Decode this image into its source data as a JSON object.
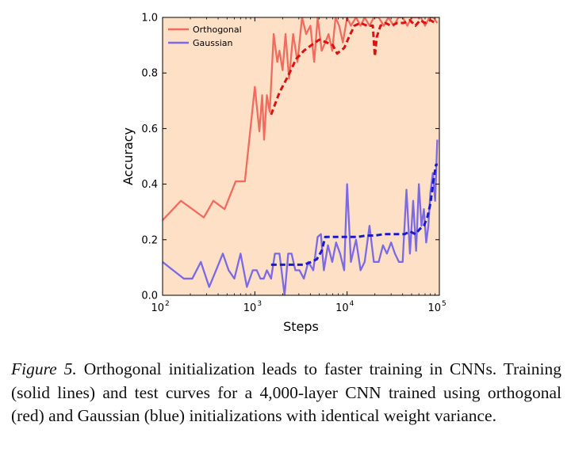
{
  "figure": {
    "caption_label": "Figure 5.",
    "caption_title": " Orthogonal initialization leads to faster training in CNNs.",
    "caption_body": " Training (solid lines) and test curves for a 4,000-layer CNN trained using orthogonal (red) and Gaussian (blue) initializations with identical weight variance."
  },
  "colors": {
    "plot_background": "#fde0c6",
    "orthogonal_train": "#f26b5e",
    "orthogonal_test": "#dd1111",
    "gaussian_train": "#7b6ae6",
    "gaussian_test": "#1a1acc"
  },
  "chart_data": {
    "type": "line",
    "title": "",
    "xlabel": "Steps",
    "ylabel": "Accuracy",
    "xscale": "log",
    "xlim": [
      100,
      100000
    ],
    "ylim": [
      0.0,
      1.0
    ],
    "xticks": [
      {
        "value": 100,
        "base": "10",
        "exp": "2"
      },
      {
        "value": 1000,
        "base": "10",
        "exp": "3"
      },
      {
        "value": 10000,
        "base": "10",
        "exp": "4"
      },
      {
        "value": 100000,
        "base": "10",
        "exp": "5"
      }
    ],
    "yticks": [
      {
        "value": 0.0,
        "label": "0.0"
      },
      {
        "value": 0.2,
        "label": "0.2"
      },
      {
        "value": 0.4,
        "label": "0.4"
      },
      {
        "value": 0.6,
        "label": "0.6"
      },
      {
        "value": 0.8,
        "label": "0.8"
      },
      {
        "value": 1.0,
        "label": "1.0"
      }
    ],
    "grid": false,
    "legend_position": "top-left",
    "series": [
      {
        "name": "Orthogonal",
        "role": "train",
        "style": "solid",
        "color": "#f26b5e",
        "in_legend": true,
        "x": [
          100,
          158,
          280,
          355,
          470,
          620,
          780,
          1000,
          1120,
          1200,
          1260,
          1350,
          1450,
          1600,
          1750,
          1850,
          2000,
          2150,
          2350,
          2600,
          2900,
          3250,
          3600,
          4000,
          4400,
          4800,
          5300,
          5800,
          6300,
          6900,
          7500,
          8200,
          9000,
          10000,
          11000,
          12500,
          14000,
          15500,
          17500,
          19500,
          22000,
          25000,
          28000,
          32000,
          36000,
          40000,
          45000,
          50000,
          56000,
          63000,
          70000,
          78000,
          86000,
          95000
        ],
        "y": [
          0.27,
          0.34,
          0.28,
          0.34,
          0.31,
          0.41,
          0.41,
          0.75,
          0.59,
          0.72,
          0.56,
          0.72,
          0.66,
          0.94,
          0.84,
          0.88,
          0.81,
          0.94,
          0.78,
          0.94,
          0.84,
          1.0,
          0.94,
          0.97,
          0.84,
          1.0,
          0.88,
          0.91,
          0.94,
          0.88,
          1.0,
          0.97,
          0.91,
          1.0,
          0.97,
          1.0,
          0.97,
          1.0,
          0.97,
          1.0,
          1.0,
          0.97,
          1.0,
          0.97,
          1.0,
          1.0,
          0.97,
          1.0,
          1.0,
          1.0,
          0.97,
          1.0,
          1.0,
          0.98
        ]
      },
      {
        "name": "Gaussian",
        "role": "train",
        "style": "solid",
        "color": "#7b6ae6",
        "in_legend": true,
        "x": [
          100,
          130,
          170,
          210,
          260,
          320,
          380,
          450,
          520,
          600,
          700,
          820,
          950,
          1050,
          1150,
          1250,
          1350,
          1500,
          1650,
          1850,
          2100,
          2300,
          2500,
          2750,
          3050,
          3400,
          3800,
          4300,
          4800,
          5200,
          5600,
          6200,
          6900,
          7600,
          8400,
          9300,
          10000,
          11000,
          12500,
          14000,
          15500,
          17500,
          19500,
          22000,
          24500,
          27000,
          30000,
          33000,
          36500,
          40000,
          44000,
          48000,
          52000,
          56000,
          60000,
          64000,
          68000,
          72000,
          76000,
          80000,
          85000,
          90000,
          95000
        ],
        "y": [
          0.12,
          0.09,
          0.06,
          0.06,
          0.12,
          0.03,
          0.09,
          0.15,
          0.09,
          0.06,
          0.15,
          0.03,
          0.09,
          0.09,
          0.06,
          0.06,
          0.09,
          0.06,
          0.15,
          0.15,
          0.0,
          0.15,
          0.15,
          0.09,
          0.09,
          0.06,
          0.12,
          0.09,
          0.21,
          0.22,
          0.09,
          0.18,
          0.12,
          0.19,
          0.15,
          0.09,
          0.4,
          0.12,
          0.2,
          0.09,
          0.12,
          0.25,
          0.12,
          0.12,
          0.18,
          0.15,
          0.19,
          0.15,
          0.12,
          0.12,
          0.38,
          0.15,
          0.34,
          0.16,
          0.4,
          0.25,
          0.31,
          0.19,
          0.25,
          0.37,
          0.44,
          0.34,
          0.56
        ]
      },
      {
        "name": "",
        "role": "test",
        "style": "dashed",
        "color": "#dd1111",
        "in_legend": false,
        "x": [
          1500,
          1850,
          2300,
          2800,
          3400,
          4100,
          5000,
          6000,
          7000,
          7800,
          8500,
          9300,
          10500,
          12000,
          14000,
          16500,
          19000,
          20000,
          21000,
          23000,
          26000,
          30000,
          35000,
          41000,
          48000,
          55000,
          62000,
          70000,
          80000,
          90000
        ],
        "y": [
          0.65,
          0.73,
          0.79,
          0.85,
          0.88,
          0.9,
          0.92,
          0.91,
          0.9,
          0.87,
          0.88,
          0.89,
          0.93,
          0.97,
          0.98,
          0.97,
          0.97,
          0.86,
          0.93,
          0.97,
          0.98,
          0.97,
          0.98,
          0.98,
          0.99,
          0.97,
          0.99,
          0.98,
          0.99,
          0.98
        ]
      },
      {
        "name": "",
        "role": "test",
        "style": "dashed",
        "color": "#1a1acc",
        "in_legend": false,
        "x": [
          1500,
          1850,
          2300,
          2800,
          3400,
          4100,
          4700,
          5300,
          5800,
          6300,
          7000,
          8000,
          9500,
          11000,
          13000,
          16000,
          20000,
          25000,
          30000,
          36000,
          42000,
          48000,
          55000,
          62000,
          68000,
          74000,
          80000,
          86000,
          92000,
          96000
        ],
        "y": [
          0.11,
          0.11,
          0.11,
          0.11,
          0.11,
          0.12,
          0.13,
          0.16,
          0.21,
          0.21,
          0.21,
          0.21,
          0.21,
          0.21,
          0.21,
          0.215,
          0.215,
          0.22,
          0.22,
          0.22,
          0.22,
          0.23,
          0.22,
          0.24,
          0.25,
          0.28,
          0.33,
          0.41,
          0.47,
          0.47
        ]
      }
    ]
  }
}
